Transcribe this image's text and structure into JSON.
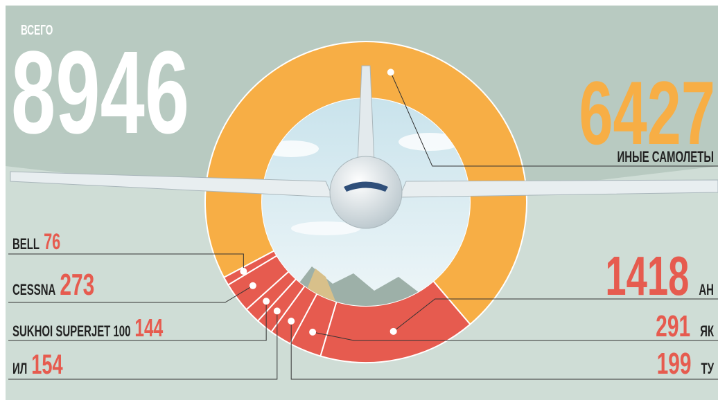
{
  "chart_data": {
    "type": "pie",
    "donut": true,
    "total_label": "ВСЕГО",
    "total": 8946,
    "categories": [
      "ИНЫЕ САМОЛЕТЫ",
      "АН",
      "ЯК",
      "ТУ",
      "ИЛ",
      "SUKHOI SUPERJET 100",
      "CESSNA",
      "BELL"
    ],
    "values": [
      6427,
      1418,
      291,
      199,
      154,
      144,
      273,
      76
    ],
    "colors": [
      "#f7ae45",
      "#e65b4f",
      "#e65b4f",
      "#e65b4f",
      "#e65b4f",
      "#e65b4f",
      "#e65b4f",
      "#e65b4f"
    ]
  }
}
